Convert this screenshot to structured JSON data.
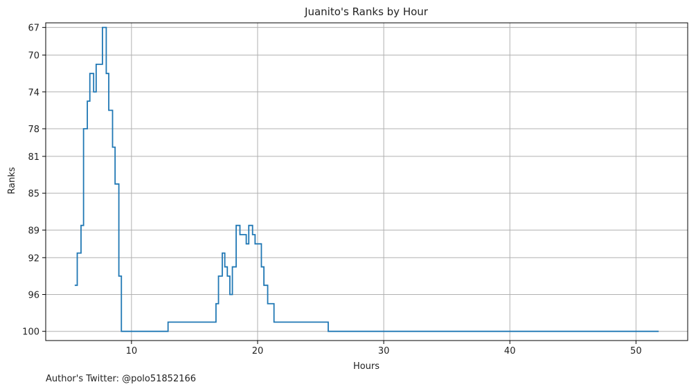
{
  "chart_data": {
    "type": "line",
    "step": "post",
    "title": "Juanito's Ranks by Hour",
    "xlabel": "Hours",
    "ylabel": "Ranks",
    "xlim": [
      3.2,
      54.1
    ],
    "ylim": [
      101,
      66.5
    ],
    "y_inverted": true,
    "grid": true,
    "xticks": [
      10,
      20,
      30,
      40,
      50
    ],
    "yticks": [
      67,
      70,
      74,
      78,
      81,
      85,
      89,
      92,
      96,
      100
    ],
    "series": [
      {
        "color": "#1f77b4",
        "x": [
          5.5,
          5.7,
          6.0,
          6.2,
          6.5,
          6.7,
          7.0,
          7.2,
          7.7,
          8.0,
          8.2,
          8.5,
          8.7,
          9.0,
          9.2,
          12.9,
          16.7,
          16.9,
          17.2,
          17.4,
          17.6,
          17.8,
          18.0,
          18.3,
          18.6,
          19.1,
          19.3,
          19.6,
          19.8,
          20.3,
          20.5,
          20.8,
          21.3,
          21.6,
          25.6,
          51.8
        ],
        "y": [
          95,
          91.5,
          88.5,
          78,
          75,
          72,
          74,
          71,
          67,
          72,
          76,
          80,
          84,
          94,
          100,
          99,
          97,
          94,
          91.5,
          93,
          94,
          96,
          93,
          88.5,
          89.5,
          90.5,
          88.5,
          89.5,
          90.5,
          93,
          95,
          97,
          99,
          99,
          100,
          100
        ]
      }
    ]
  },
  "footer": {
    "author": "Author's Twitter: @polo51852166"
  }
}
